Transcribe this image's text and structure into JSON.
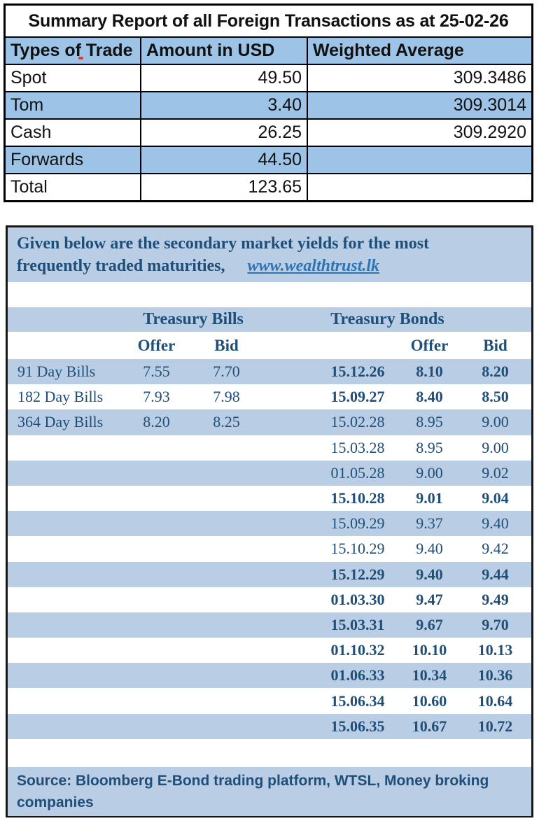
{
  "colors": {
    "summary_blue": "#9dc3e6",
    "panel_band_blue": "#b9cde4",
    "navy_text": "#1f4e79",
    "link_blue": "#2e75b6",
    "border_black": "#000000"
  },
  "summary_table": {
    "title": "Summary Report of all Foreign Transactions as at 25-02-26",
    "columns": [
      "Types of Trade",
      "Amount in USD",
      "Weighted Average"
    ],
    "rows": [
      {
        "type": "Spot",
        "amount": "49.50",
        "weighted_average": "309.3486",
        "shaded": false
      },
      {
        "type": "Tom",
        "amount": "3.40",
        "weighted_average": "309.3014",
        "shaded": true
      },
      {
        "type": "Cash",
        "amount": "26.25",
        "weighted_average": "309.2920",
        "shaded": false
      },
      {
        "type": "Forwards",
        "amount": "44.50",
        "weighted_average": "",
        "shaded": true
      },
      {
        "type": "Total",
        "amount": "123.65",
        "weighted_average": "",
        "shaded": false
      }
    ]
  },
  "yields_panel": {
    "intro_lines": [
      "Given below are the secondary market yields for the most",
      "frequently traded maturities,"
    ],
    "link_text": "www.wealthtrust.lk",
    "bills_header": "Treasury Bills",
    "bonds_header": "Treasury Bonds",
    "offer_label": "Offer",
    "bid_label": "Bid",
    "rows": [
      {
        "label": "91 Day Bills",
        "bill_offer": "7.55",
        "bill_bid": "7.70",
        "bond_date": "15.12.26",
        "bond_offer": "8.10",
        "bond_bid": "8.20",
        "bond_bold": true,
        "shaded": true
      },
      {
        "label": "182 Day Bills",
        "bill_offer": "7.93",
        "bill_bid": "7.98",
        "bond_date": "15.09.27",
        "bond_offer": "8.40",
        "bond_bid": "8.50",
        "bond_bold": true,
        "shaded": false
      },
      {
        "label": "364 Day Bills",
        "bill_offer": "8.20",
        "bill_bid": "8.25",
        "bond_date": "15.02.28",
        "bond_offer": "8.95",
        "bond_bid": "9.00",
        "bond_bold": false,
        "shaded": true
      },
      {
        "label": "",
        "bill_offer": "",
        "bill_bid": "",
        "bond_date": "15.03.28",
        "bond_offer": "8.95",
        "bond_bid": "9.00",
        "bond_bold": false,
        "shaded": false
      },
      {
        "label": "",
        "bill_offer": "",
        "bill_bid": "",
        "bond_date": "01.05.28",
        "bond_offer": "9.00",
        "bond_bid": "9.02",
        "bond_bold": false,
        "shaded": true
      },
      {
        "label": "",
        "bill_offer": "",
        "bill_bid": "",
        "bond_date": "15.10.28",
        "bond_offer": "9.01",
        "bond_bid": "9.04",
        "bond_bold": true,
        "shaded": false
      },
      {
        "label": "",
        "bill_offer": "",
        "bill_bid": "",
        "bond_date": "15.09.29",
        "bond_offer": "9.37",
        "bond_bid": "9.40",
        "bond_bold": false,
        "shaded": true
      },
      {
        "label": "",
        "bill_offer": "",
        "bill_bid": "",
        "bond_date": "15.10.29",
        "bond_offer": "9.40",
        "bond_bid": "9.42",
        "bond_bold": false,
        "shaded": false
      },
      {
        "label": "",
        "bill_offer": "",
        "bill_bid": "",
        "bond_date": "15.12.29",
        "bond_offer": "9.40",
        "bond_bid": "9.44",
        "bond_bold": true,
        "shaded": true
      },
      {
        "label": "",
        "bill_offer": "",
        "bill_bid": "",
        "bond_date": "01.03.30",
        "bond_offer": "9.47",
        "bond_bid": "9.49",
        "bond_bold": true,
        "shaded": false
      },
      {
        "label": "",
        "bill_offer": "",
        "bill_bid": "",
        "bond_date": "15.03.31",
        "bond_offer": "9.67",
        "bond_bid": "9.70",
        "bond_bold": true,
        "shaded": true
      },
      {
        "label": "",
        "bill_offer": "",
        "bill_bid": "",
        "bond_date": "01.10.32",
        "bond_offer": "10.10",
        "bond_bid": "10.13",
        "bond_bold": true,
        "shaded": false
      },
      {
        "label": "",
        "bill_offer": "",
        "bill_bid": "",
        "bond_date": "01.06.33",
        "bond_offer": "10.34",
        "bond_bid": "10.36",
        "bond_bold": true,
        "shaded": true
      },
      {
        "label": "",
        "bill_offer": "",
        "bill_bid": "",
        "bond_date": "15.06.34",
        "bond_offer": "10.60",
        "bond_bid": "10.64",
        "bond_bold": true,
        "shaded": false
      },
      {
        "label": "",
        "bill_offer": "",
        "bill_bid": "",
        "bond_date": "15.06.35",
        "bond_offer": "10.67",
        "bond_bid": "10.72",
        "bond_bold": true,
        "shaded": true
      }
    ],
    "source_lines": [
      "Source: Bloomberg E-Bond trading platform, WTSL, Money broking",
      "companies"
    ]
  }
}
